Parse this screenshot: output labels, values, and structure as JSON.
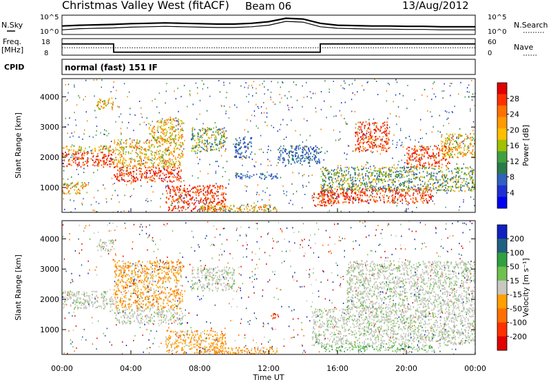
{
  "header": {
    "station": "Christmas Valley West (fitACF)",
    "beam": "Beam 06",
    "date": "13/Aug/2012"
  },
  "strip_labels": {
    "nsky": "N.Sky",
    "nsky_ticks": [
      "10^5",
      "10^0"
    ],
    "nsearch": "N.Search",
    "nsearch_ticks": [
      "10^5",
      "10^0"
    ],
    "freq_label_1": "Freq.",
    "freq_label_2": "[MHz]",
    "freq_ticks": [
      "18",
      "8"
    ],
    "nave": "Nave",
    "nave_ticks": [
      "60",
      "0"
    ],
    "cpid": "CPID",
    "cpid_text": "normal (fast) 151 IF"
  },
  "chart_data": [
    {
      "type": "line",
      "panel": "noise",
      "x": [
        0,
        1,
        2,
        3,
        4,
        5,
        6,
        7,
        8,
        9,
        10,
        11,
        12,
        13,
        14,
        15,
        16,
        17,
        18,
        19,
        20,
        21,
        22,
        23,
        24
      ],
      "series": [
        {
          "values": [
            2.2,
            2.4,
            2.5,
            2.6,
            2.8,
            2.9,
            3.0,
            2.9,
            2.8,
            2.7,
            2.7,
            2.9,
            3.3,
            4.2,
            4.0,
            2.9,
            2.4,
            2.3,
            2.2,
            2.2,
            2.1,
            2.1,
            2.0,
            2.0,
            2.0
          ]
        },
        {
          "values": [
            1.2,
            1.5,
            1.6,
            1.7,
            1.9,
            2.0,
            2.1,
            2.0,
            1.9,
            1.8,
            1.8,
            2.0,
            2.4,
            3.4,
            3.2,
            2.0,
            1.6,
            1.5,
            1.4,
            1.4,
            1.3,
            1.3,
            1.2,
            1.2,
            1.2
          ]
        }
      ],
      "ylim": [
        0,
        5
      ]
    },
    {
      "type": "line",
      "panel": "frequency",
      "x": [
        0,
        3,
        3,
        15,
        15,
        24
      ],
      "series": [
        {
          "values": [
            14.8,
            14.8,
            9.8,
            9.8,
            14.8,
            14.8
          ]
        },
        {
          "values": [
            12.5,
            12.5,
            12.5,
            12.5,
            12.5,
            12.5
          ]
        }
      ],
      "ylim": [
        8,
        18
      ]
    },
    {
      "type": "heatmap",
      "panel": "power",
      "ylabel": "Slant Range [km]",
      "xlim": [
        0,
        24
      ],
      "ylim": [
        180,
        4600
      ],
      "yticks": [
        1000,
        2000,
        3000,
        4000
      ],
      "colorbar_label": "Power [dB]",
      "colorbar_ticks": [
        "28",
        "24",
        "20",
        "16",
        "12",
        "8",
        "4"
      ],
      "colorbar_colors": [
        "#e00000",
        "#ff3000",
        "#ff7000",
        "#ff9a00",
        "#ffbe00",
        "#a0c000",
        "#40a040",
        "#2a7a4a",
        "#3060c0",
        "#2030d0",
        "#0000f0"
      ],
      "blobs": [
        {
          "x0": 0.0,
          "x1": 3.0,
          "y0": 1700,
          "y1": 2200,
          "level": "high"
        },
        {
          "x0": 0.0,
          "x1": 3.0,
          "y0": 2200,
          "y1": 2400,
          "level": "mid"
        },
        {
          "x0": 3.0,
          "x1": 7.0,
          "y0": 1200,
          "y1": 1700,
          "level": "high"
        },
        {
          "x0": 3.0,
          "x1": 7.0,
          "y0": 1700,
          "y1": 2600,
          "level": "mid"
        },
        {
          "x0": 5.0,
          "x1": 7.0,
          "y0": 2600,
          "y1": 3300,
          "level": "mid"
        },
        {
          "x0": 0.0,
          "x1": 1.5,
          "y0": 800,
          "y1": 1200,
          "level": "mid"
        },
        {
          "x0": 2.0,
          "x1": 3.0,
          "y0": 3600,
          "y1": 4000,
          "level": "mid"
        },
        {
          "x0": 6.0,
          "x1": 9.5,
          "y0": 250,
          "y1": 1100,
          "level": "high"
        },
        {
          "x0": 7.5,
          "x1": 9.5,
          "y0": 2200,
          "y1": 3000,
          "level": "low"
        },
        {
          "x0": 8.0,
          "x1": 12.5,
          "y0": 200,
          "y1": 450,
          "level": "mid"
        },
        {
          "x0": 10.0,
          "x1": 12.5,
          "y0": 1300,
          "y1": 1500,
          "level": "weak"
        },
        {
          "x0": 10.0,
          "x1": 11.0,
          "y0": 2000,
          "y1": 2700,
          "level": "weak"
        },
        {
          "x0": 14.5,
          "x1": 15.8,
          "y0": 400,
          "y1": 900,
          "level": "high"
        },
        {
          "x0": 15.0,
          "x1": 21.5,
          "y0": 500,
          "y1": 1000,
          "level": "high"
        },
        {
          "x0": 15.0,
          "x1": 24.0,
          "y0": 900,
          "y1": 1700,
          "level": "low"
        },
        {
          "x0": 17.0,
          "x1": 19.0,
          "y0": 2200,
          "y1": 3200,
          "level": "high"
        },
        {
          "x0": 20.0,
          "x1": 22.5,
          "y0": 1700,
          "y1": 2400,
          "level": "high"
        },
        {
          "x0": 22.0,
          "x1": 24.0,
          "y0": 2000,
          "y1": 2800,
          "level": "mid"
        },
        {
          "x0": 12.5,
          "x1": 15.0,
          "y0": 1800,
          "y1": 2400,
          "level": "weak"
        }
      ]
    },
    {
      "type": "heatmap",
      "panel": "velocity",
      "ylabel": "Slant Range [km]",
      "xlabel": "Time UT",
      "xlim": [
        0,
        24
      ],
      "ylim": [
        180,
        4600
      ],
      "xticks": [
        "00:00",
        "04:00",
        "08:00",
        "12:00",
        "16:00",
        "20:00",
        "00:00"
      ],
      "yticks": [
        1000,
        2000,
        3000,
        4000
      ],
      "colorbar_label": "Velocity [m s⁻¹]",
      "colorbar_ticks": [
        "200",
        "100",
        "50",
        "15",
        "-15",
        "-50",
        "-100",
        "-200"
      ],
      "colorbar_colors": [
        "#1020c0",
        "#206080",
        "#30a040",
        "#70c050",
        "#c8c8c0",
        "#ffa000",
        "#ff7000",
        "#ff3000",
        "#e00000"
      ],
      "blobs": [
        {
          "x0": 0.0,
          "x1": 3.0,
          "y0": 1700,
          "y1": 2300,
          "level": "gray"
        },
        {
          "x0": 3.0,
          "x1": 7.0,
          "y0": 1200,
          "y1": 1700,
          "level": "gray"
        },
        {
          "x0": 3.0,
          "x1": 7.0,
          "y0": 1700,
          "y1": 3300,
          "level": "orange"
        },
        {
          "x0": 6.0,
          "x1": 9.5,
          "y0": 250,
          "y1": 1000,
          "level": "orange"
        },
        {
          "x0": 7.5,
          "x1": 10.0,
          "y0": 2300,
          "y1": 3100,
          "level": "gray"
        },
        {
          "x0": 8.0,
          "x1": 12.5,
          "y0": 200,
          "y1": 450,
          "level": "orange"
        },
        {
          "x0": 12.0,
          "x1": 12.6,
          "y0": 1400,
          "y1": 1550,
          "level": "red"
        },
        {
          "x0": 14.5,
          "x1": 24.0,
          "y0": 500,
          "y1": 1700,
          "level": "gray"
        },
        {
          "x0": 16.5,
          "x1": 24.0,
          "y0": 1700,
          "y1": 3300,
          "level": "gray"
        },
        {
          "x0": 2.0,
          "x1": 3.0,
          "y0": 3600,
          "y1": 4000,
          "level": "gray"
        },
        {
          "x0": 15.0,
          "x1": 22.0,
          "y0": 300,
          "y1": 500,
          "level": "green"
        }
      ]
    }
  ]
}
